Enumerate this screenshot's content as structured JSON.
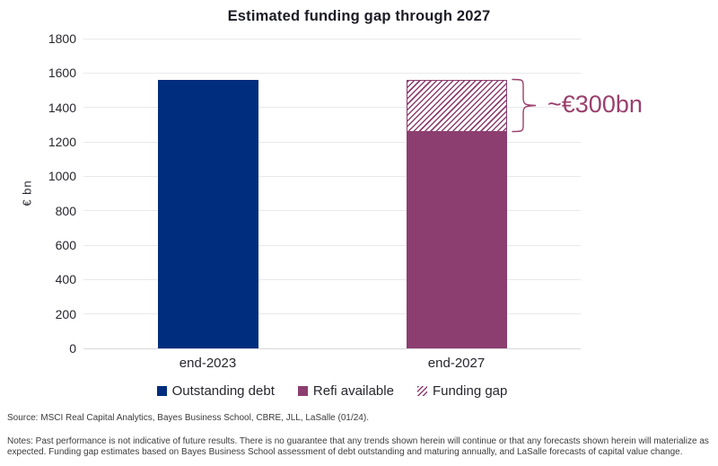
{
  "title": "Estimated funding gap through 2027",
  "chart_data": {
    "type": "bar",
    "stacked": true,
    "categories": [
      "end-2023",
      "end-2027"
    ],
    "series": [
      {
        "name": "Outstanding debt",
        "color": "#002d7d",
        "style": "solid",
        "values": [
          1560,
          0
        ]
      },
      {
        "name": "Refi available",
        "color": "#8c3e70",
        "style": "solid",
        "values": [
          0,
          1260
        ]
      },
      {
        "name": "Funding gap",
        "color": "#8c3e70",
        "style": "hatched",
        "values": [
          0,
          300
        ]
      }
    ],
    "xlabel": "",
    "ylabel": "€ bn",
    "ylim": [
      0,
      1800
    ],
    "ytick_step": 200,
    "yticks": [
      0,
      200,
      400,
      600,
      800,
      1000,
      1200,
      1400,
      1600,
      1800
    ],
    "grid": true,
    "legend_position": "bottom",
    "annotation": {
      "text": "~€300bn",
      "target": "funding gap segment of end-2027",
      "color": "#9a406e"
    }
  },
  "colors": {
    "outstanding_debt": "#002d7d",
    "refi_available": "#8c3e70",
    "annotation": "#9a406e",
    "gridline": "#e9e9ec"
  },
  "source": "Source: MSCI Real Capital Analytics, Bayes Business School, CBRE, JLL, LaSalle (01/24).",
  "notes": "Notes: Past performance is not indicative of future results. There is no guarantee that any trends shown herein will continue or that any forecasts shown herein will materialize as expected. Funding gap estimates based on Bayes Business School assessment of debt outstanding and maturing annually, and LaSalle forecasts of capital value change."
}
